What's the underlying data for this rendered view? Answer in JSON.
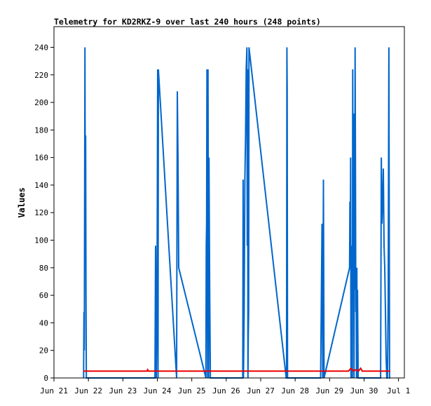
{
  "chart_data": {
    "type": "line",
    "title": "Telemetry for KD2RKZ-9 over last 240 hours (248 points)",
    "xlabel": "",
    "ylabel": "Values",
    "ylim": [
      0,
      255
    ],
    "yticks": [
      0,
      20,
      40,
      60,
      80,
      100,
      120,
      140,
      160,
      180,
      200,
      220,
      240
    ],
    "xlim": [
      0,
      10.17
    ],
    "xticks": [
      {
        "x": 0,
        "label": "Jun 21"
      },
      {
        "x": 1,
        "label": "Jun 22"
      },
      {
        "x": 2,
        "label": "Jun 23"
      },
      {
        "x": 3,
        "label": "Jun 24"
      },
      {
        "x": 4,
        "label": "Jun 25"
      },
      {
        "x": 5,
        "label": "Jun 26"
      },
      {
        "x": 6,
        "label": "Jun 27"
      },
      {
        "x": 7,
        "label": "Jun 28"
      },
      {
        "x": 8,
        "label": "Jun 29"
      },
      {
        "x": 9,
        "label": "Jun 30"
      },
      {
        "x": 10,
        "label": "Jul 1"
      }
    ],
    "grid": false,
    "legend": "none",
    "series": [
      {
        "color": "#0066cc",
        "x": [
          0.86,
          0.87,
          0.88,
          0.89,
          0.9,
          0.91,
          0.92,
          0.93,
          0.94,
          2.93,
          2.95,
          2.97,
          2.99,
          3.01,
          3.02,
          3.03,
          3.56,
          3.58,
          3.6,
          3.62,
          4.41,
          4.42,
          4.43,
          4.44,
          4.45,
          4.46,
          4.47,
          4.48,
          4.49,
          4.5,
          4.51,
          4.52,
          4.53,
          4.54,
          4.55,
          4.56,
          4.57,
          4.58,
          4.59,
          5.48,
          5.49,
          5.5,
          5.52,
          5.54,
          5.56,
          5.58,
          5.6,
          5.61,
          5.62,
          5.63,
          5.64,
          5.65,
          5.66,
          6.74,
          6.75,
          6.76,
          6.77,
          6.78,
          7.74,
          7.76,
          7.78,
          7.8,
          7.82,
          7.84,
          8.58,
          8.59,
          8.6,
          8.61,
          8.62,
          8.63,
          8.64,
          8.65,
          8.66,
          8.67,
          8.68,
          8.69,
          8.7,
          8.71,
          8.72,
          8.73,
          8.74,
          8.75,
          8.76,
          8.77,
          8.78,
          8.79,
          8.8,
          8.81,
          8.82,
          8.83,
          8.84,
          8.85,
          8.86,
          8.87,
          8.88,
          8.89,
          8.9,
          8.91,
          8.92,
          8.93,
          9.48,
          9.5,
          9.52,
          9.54,
          9.56,
          9.58,
          9.6,
          9.62,
          9.64,
          9.66,
          9.68,
          9.7,
          9.72,
          9.74,
          9.76
        ],
        "y": [
          0,
          48,
          20,
          137,
          240,
          120,
          176,
          60,
          0,
          0,
          96,
          0,
          48,
          224,
          0,
          224,
          0,
          208,
          160,
          80,
          0,
          96,
          112,
          224,
          64,
          0,
          224,
          112,
          0,
          160,
          112,
          64,
          32,
          0,
          0,
          0,
          0,
          0,
          0,
          0,
          144,
          0,
          48,
          144,
          176,
          224,
          240,
          96,
          224,
          0,
          32,
          48,
          240,
          0,
          0,
          240,
          208,
          0,
          0,
          56,
          112,
          0,
          144,
          0,
          80,
          128,
          80,
          160,
          0,
          96,
          48,
          32,
          0,
          224,
          96,
          192,
          112,
          0,
          192,
          64,
          240,
          160,
          48,
          64,
          0,
          80,
          0,
          64,
          32,
          0,
          0,
          0,
          0,
          0,
          0,
          0,
          0,
          0,
          0,
          0,
          0,
          160,
          112,
          128,
          152,
          96,
          80,
          48,
          16,
          0,
          0,
          56,
          240,
          0,
          0
        ]
      },
      {
        "color": "#ee0000",
        "x": [
          0.85,
          2.7,
          2.72,
          2.74,
          8.48,
          8.5,
          8.55,
          8.62,
          8.7,
          8.76,
          8.84,
          8.9,
          8.95,
          9.76
        ],
        "y": [
          5,
          5,
          6,
          5,
          5,
          5,
          5,
          7,
          5,
          6,
          5,
          7,
          5,
          5
        ]
      }
    ]
  }
}
